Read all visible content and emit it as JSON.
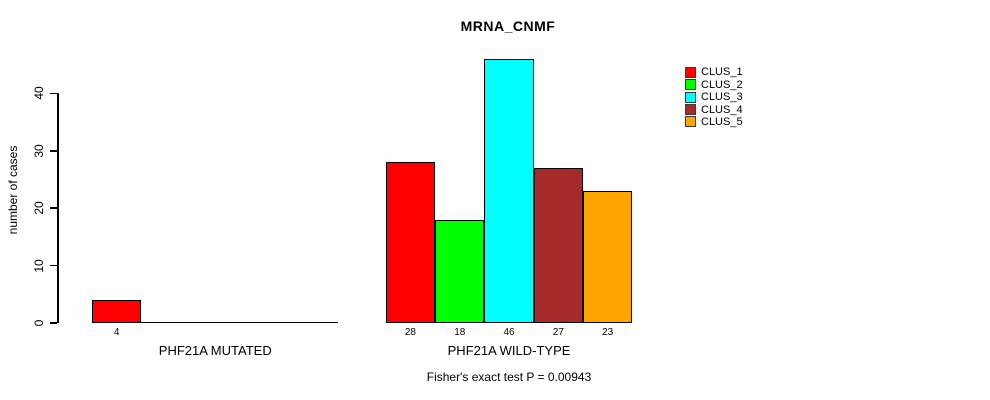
{
  "title": "MRNA_CNMF",
  "y_axis": {
    "label": "number of cases",
    "ticks": [
      0,
      10,
      20,
      30,
      40
    ]
  },
  "caption": "Fisher's exact test P = 0.00943",
  "legend": {
    "items": [
      {
        "label": "CLUS_1",
        "color": "#FF0000"
      },
      {
        "label": "CLUS_2",
        "color": "#00FF00"
      },
      {
        "label": "CLUS_3",
        "color": "#00FFFF"
      },
      {
        "label": "CLUS_4",
        "color": "#A52A2A"
      },
      {
        "label": "CLUS_5",
        "color": "#FFA500"
      }
    ]
  },
  "chart_data": {
    "type": "bar",
    "title": "MRNA_CNMF",
    "xlabel": "",
    "ylabel": "number of cases",
    "ylim": [
      0,
      46
    ],
    "yticks": [
      0,
      10,
      20,
      30,
      40
    ],
    "grid": false,
    "legend_position": "top-right",
    "series_names": [
      "CLUS_1",
      "CLUS_2",
      "CLUS_3",
      "CLUS_4",
      "CLUS_5"
    ],
    "series_colors": [
      "#FF0000",
      "#00FF00",
      "#00FFFF",
      "#A52A2A",
      "#FFA500"
    ],
    "groups": [
      {
        "label": "PHF21A MUTATED",
        "values": [
          4,
          0,
          0,
          0,
          0
        ]
      },
      {
        "label": "PHF21A WILD-TYPE",
        "values": [
          28,
          18,
          46,
          27,
          23
        ]
      }
    ],
    "bar_value_labels_shown_when": "value > 0",
    "annotation": "Fisher's exact test P = 0.00943"
  }
}
